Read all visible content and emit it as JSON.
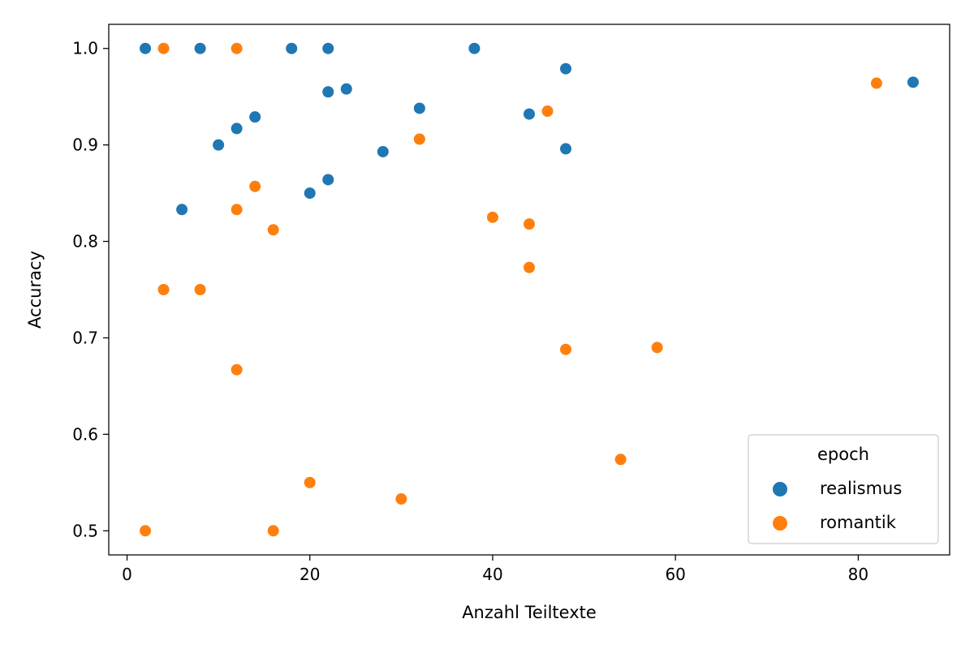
{
  "chart_data": {
    "type": "scatter",
    "title": "",
    "xlabel": "Anzahl Teiltexte",
    "ylabel": "Accuracy",
    "xlim": [
      -2,
      90
    ],
    "ylim": [
      0.475,
      1.025
    ],
    "xticks": [
      0,
      20,
      40,
      60,
      80
    ],
    "xtick_labels": [
      "0",
      "20",
      "40",
      "60",
      "80"
    ],
    "yticks": [
      0.5,
      0.6,
      0.7,
      0.8,
      0.9,
      1.0
    ],
    "ytick_labels": [
      "0.5",
      "0.6",
      "0.7",
      "0.8",
      "0.9",
      "1.0"
    ],
    "grid": false,
    "legend": {
      "title": "epoch",
      "placement": "lower-right"
    },
    "series": [
      {
        "name": "realismus",
        "color": "#1f77b4",
        "points": [
          {
            "x": 2,
            "y": 1.0
          },
          {
            "x": 8,
            "y": 1.0
          },
          {
            "x": 18,
            "y": 1.0
          },
          {
            "x": 22,
            "y": 1.0
          },
          {
            "x": 38,
            "y": 1.0
          },
          {
            "x": 48,
            "y": 0.979
          },
          {
            "x": 86,
            "y": 0.965
          },
          {
            "x": 24,
            "y": 0.958
          },
          {
            "x": 22,
            "y": 0.955
          },
          {
            "x": 32,
            "y": 0.938
          },
          {
            "x": 44,
            "y": 0.932
          },
          {
            "x": 14,
            "y": 0.929
          },
          {
            "x": 12,
            "y": 0.917
          },
          {
            "x": 10,
            "y": 0.9
          },
          {
            "x": 48,
            "y": 0.896
          },
          {
            "x": 28,
            "y": 0.893
          },
          {
            "x": 22,
            "y": 0.864
          },
          {
            "x": 20,
            "y": 0.85
          },
          {
            "x": 6,
            "y": 0.833
          }
        ]
      },
      {
        "name": "romantik",
        "color": "#ff7f0e",
        "points": [
          {
            "x": 4,
            "y": 1.0
          },
          {
            "x": 12,
            "y": 1.0
          },
          {
            "x": 82,
            "y": 0.964
          },
          {
            "x": 46,
            "y": 0.935
          },
          {
            "x": 32,
            "y": 0.906
          },
          {
            "x": 14,
            "y": 0.857
          },
          {
            "x": 12,
            "y": 0.833
          },
          {
            "x": 40,
            "y": 0.825
          },
          {
            "x": 44,
            "y": 0.818
          },
          {
            "x": 16,
            "y": 0.812
          },
          {
            "x": 44,
            "y": 0.773
          },
          {
            "x": 4,
            "y": 0.75
          },
          {
            "x": 8,
            "y": 0.75
          },
          {
            "x": 58,
            "y": 0.69
          },
          {
            "x": 48,
            "y": 0.688
          },
          {
            "x": 12,
            "y": 0.667
          },
          {
            "x": 54,
            "y": 0.574
          },
          {
            "x": 20,
            "y": 0.55
          },
          {
            "x": 30,
            "y": 0.533
          },
          {
            "x": 2,
            "y": 0.5
          },
          {
            "x": 16,
            "y": 0.5
          }
        ]
      }
    ]
  }
}
